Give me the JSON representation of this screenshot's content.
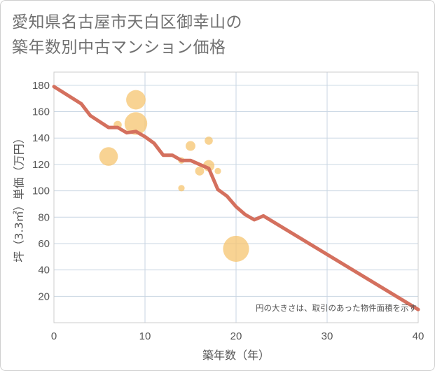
{
  "title": {
    "line1": "愛知県名古屋市天白区御幸山の",
    "line2": "築年数別中古マンション価格"
  },
  "chart_data": {
    "type": "scatter",
    "xlabel": "築年数（年）",
    "ylabel": "坪（3.3㎡）単価（万円）",
    "xlim": [
      0,
      40
    ],
    "ylim": [
      0,
      190
    ],
    "x_ticks": [
      0,
      10,
      20,
      30,
      40
    ],
    "y_ticks": [
      20,
      40,
      60,
      80,
      100,
      120,
      140,
      160,
      180
    ],
    "grid": true,
    "note": "円の大きさは、取引のあった物件面積を示す",
    "colors": {
      "bubble": "#f5c46f",
      "line": "#d4705e",
      "grid": "#c9d6e3",
      "plot_border": "#cccccc"
    },
    "bubbles": [
      {
        "x": 6,
        "y": 126,
        "size": 2.3
      },
      {
        "x": 7,
        "y": 150,
        "size": 1.0
      },
      {
        "x": 9,
        "y": 169,
        "size": 2.4
      },
      {
        "x": 9,
        "y": 151,
        "size": 2.8
      },
      {
        "x": 14,
        "y": 102,
        "size": 0.8
      },
      {
        "x": 14,
        "y": 123,
        "size": 0.8
      },
      {
        "x": 15,
        "y": 134,
        "size": 1.2
      },
      {
        "x": 16,
        "y": 115,
        "size": 1.1
      },
      {
        "x": 17,
        "y": 119,
        "size": 1.4
      },
      {
        "x": 17,
        "y": 138,
        "size": 1.0
      },
      {
        "x": 18,
        "y": 115,
        "size": 0.8
      },
      {
        "x": 20,
        "y": 56,
        "size": 3.2
      }
    ],
    "trend_line": {
      "x": [
        0,
        3,
        4,
        6,
        7,
        8,
        9,
        10,
        11,
        12,
        13,
        14,
        15,
        16,
        17,
        18,
        19,
        20,
        21,
        22,
        23,
        40
      ],
      "y": [
        179,
        166,
        157,
        148,
        148,
        144,
        145,
        141,
        136,
        127,
        127,
        123,
        123,
        120,
        117,
        101,
        96,
        88,
        82,
        78,
        81,
        10
      ]
    }
  }
}
